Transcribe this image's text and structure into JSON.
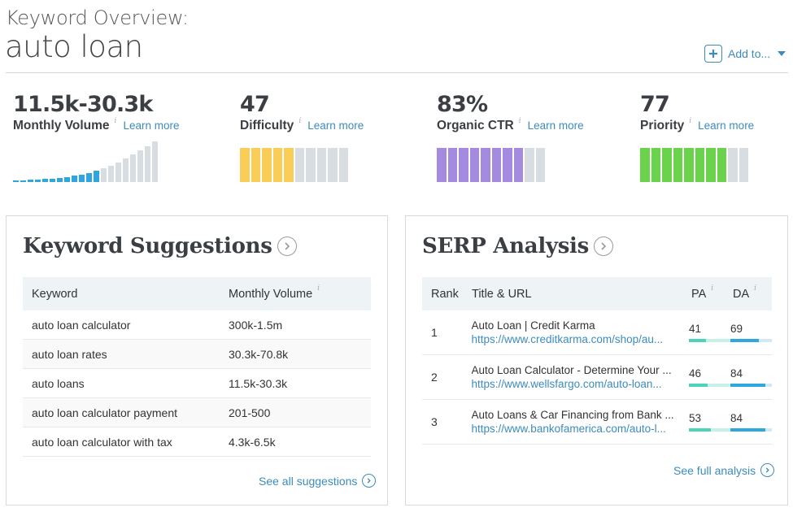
{
  "header": {
    "subtitle": "Keyword Overview:",
    "keyword": "auto loan",
    "add_to_label": "Add to..."
  },
  "metrics": {
    "volume": {
      "value": "11.5k-30.3k",
      "label": "Monthly Volume",
      "info": "i",
      "learn": "Learn more"
    },
    "difficulty": {
      "value": "47",
      "label": "Difficulty",
      "info": "i",
      "learn": "Learn more",
      "filled_segments": 5,
      "total_segments": 10,
      "color": "#f9cd57"
    },
    "ctr": {
      "value": "83%",
      "label": "Organic CTR",
      "info": "i",
      "learn": "Learn more",
      "filled_segments": 8,
      "total_segments": 10,
      "color": "#a58be0"
    },
    "priority": {
      "value": "77",
      "label": "Priority",
      "info": "i",
      "learn": "Learn more",
      "filled_segments": 8,
      "total_segments": 10,
      "color": "#6ad34b"
    }
  },
  "volume_bars": {
    "levels": [
      0.04,
      0.05,
      0.06,
      0.07,
      0.08,
      0.09,
      0.11,
      0.13,
      0.16,
      0.19,
      0.23,
      0.28,
      0.34,
      0.41,
      0.49,
      0.58,
      0.68,
      0.78,
      0.89,
      1.0
    ],
    "highlighted": 12,
    "highlight_color": "#2fa6e0",
    "base_color": "#d7dde0"
  },
  "empty_segment_color": "#d7dde0",
  "suggestions": {
    "title": "Keyword Suggestions",
    "col_keyword": "Keyword",
    "col_volume": "Monthly Volume",
    "info": "i",
    "rows": [
      {
        "keyword": "auto loan calculator",
        "volume": "300k-1.5m"
      },
      {
        "keyword": "auto loan rates",
        "volume": "30.3k-70.8k"
      },
      {
        "keyword": "auto loans",
        "volume": "11.5k-30.3k"
      },
      {
        "keyword": "auto loan calculator payment",
        "volume": "201-500"
      },
      {
        "keyword": "auto loan calculator with tax",
        "volume": "4.3k-6.5k"
      }
    ],
    "see_all": "See all suggestions"
  },
  "serp": {
    "title": "SERP Analysis",
    "col_rank": "Rank",
    "col_title": "Title & URL",
    "col_pa": "PA",
    "col_da": "DA",
    "info": "i",
    "rows": [
      {
        "rank": "1",
        "title": "Auto Loan | Credit Karma",
        "url": "https://www.creditkarma.com/shop/au...",
        "pa": "41",
        "da": "69",
        "pa_frac": 0.41,
        "da_frac": 0.69
      },
      {
        "rank": "2",
        "title": "Auto Loan Calculator - Determine Your ...",
        "url": "https://www.wellsfargo.com/auto-loan...",
        "pa": "46",
        "da": "84",
        "pa_frac": 0.46,
        "da_frac": 0.84
      },
      {
        "rank": "3",
        "title": "Auto Loans & Car Financing from Bank ...",
        "url": "https://www.bankofamerica.com/auto-l...",
        "pa": "53",
        "da": "84",
        "pa_frac": 0.53,
        "da_frac": 0.84
      }
    ],
    "see_full": "See full analysis"
  }
}
